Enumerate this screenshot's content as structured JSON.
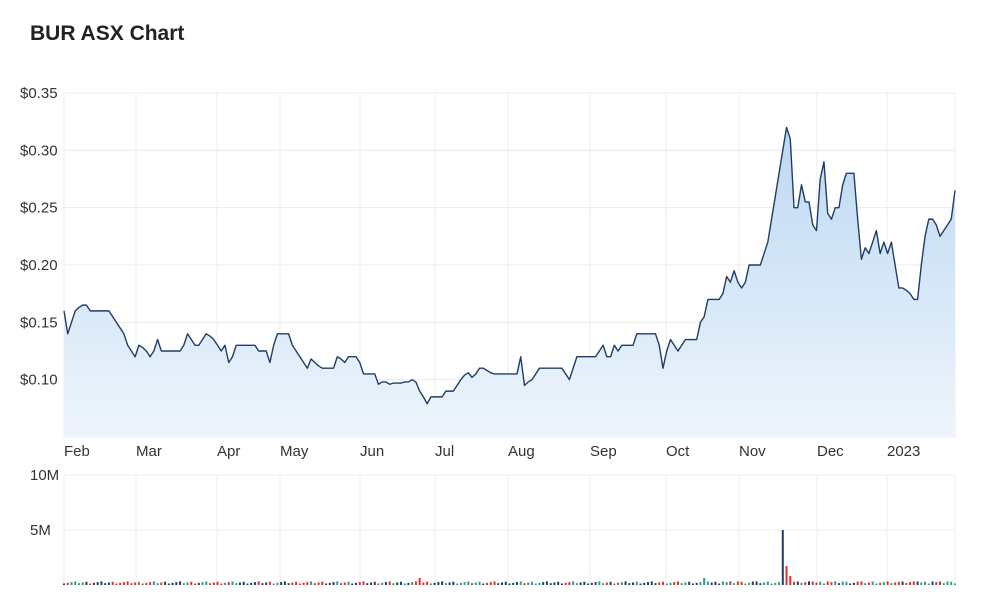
{
  "chart_data": {
    "type": "line",
    "title": "BUR ASX Chart",
    "colors": {
      "line": "#1f3d66",
      "area_top": "#bcd8f2",
      "area_bottom": "#eef5fc",
      "volume_up": "#2a9d8f",
      "volume_down": "#e0342a",
      "volume_neutral": "#1f3d66",
      "grid": "#ececec"
    },
    "grid": true,
    "price": {
      "y_ticks": [
        {
          "value": 0.35,
          "label": "$0.35"
        },
        {
          "value": 0.3,
          "label": "$0.30"
        },
        {
          "value": 0.25,
          "label": "$0.25"
        },
        {
          "value": 0.2,
          "label": "$0.20"
        },
        {
          "value": 0.15,
          "label": "$0.15"
        },
        {
          "value": 0.1,
          "label": "$0.10"
        }
      ],
      "ylim": [
        0.05,
        0.35
      ],
      "x_ticks": [
        "Feb",
        "Mar",
        "Apr",
        "May",
        "Jun",
        "Jul",
        "Aug",
        "Sep",
        "Oct",
        "Nov",
        "Dec",
        "2023"
      ],
      "series": [
        {
          "values": [
            0.16,
            0.14,
            0.15,
            0.16,
            0.163,
            0.165,
            0.165,
            0.16,
            0.16,
            0.16,
            0.16,
            0.16,
            0.16,
            0.155,
            0.15,
            0.145,
            0.14,
            0.13,
            0.125,
            0.12,
            0.13,
            0.128,
            0.125,
            0.12,
            0.125,
            0.135,
            0.125,
            0.125,
            0.125,
            0.125,
            0.125,
            0.125,
            0.13,
            0.14,
            0.135,
            0.13,
            0.13,
            0.135,
            0.14,
            0.138,
            0.135,
            0.13,
            0.125,
            0.13,
            0.115,
            0.12,
            0.13,
            0.13,
            0.13,
            0.13,
            0.13,
            0.13,
            0.125,
            0.125,
            0.125,
            0.115,
            0.13,
            0.14,
            0.14,
            0.14,
            0.14,
            0.13,
            0.125,
            0.12,
            0.115,
            0.11,
            0.118,
            0.115,
            0.112,
            0.11,
            0.11,
            0.11,
            0.11,
            0.12,
            0.118,
            0.115,
            0.12,
            0.12,
            0.12,
            0.115,
            0.105,
            0.105,
            0.105,
            0.105,
            0.096,
            0.098,
            0.098,
            0.096,
            0.097,
            0.097,
            0.097,
            0.098,
            0.098,
            0.1,
            0.098,
            0.09,
            0.085,
            0.079,
            0.085,
            0.085,
            0.085,
            0.085,
            0.09,
            0.09,
            0.09,
            0.095,
            0.1,
            0.104,
            0.106,
            0.102,
            0.105,
            0.11,
            0.11,
            0.108,
            0.106,
            0.105,
            0.105,
            0.105,
            0.105,
            0.105,
            0.105,
            0.105,
            0.12,
            0.095,
            0.098,
            0.1,
            0.105,
            0.11,
            0.11,
            0.11,
            0.11,
            0.11,
            0.11,
            0.11,
            0.105,
            0.1,
            0.11,
            0.12,
            0.12,
            0.12,
            0.12,
            0.12,
            0.12,
            0.125,
            0.13,
            0.12,
            0.12,
            0.13,
            0.125,
            0.13,
            0.13,
            0.13,
            0.13,
            0.14,
            0.14,
            0.14,
            0.14,
            0.14,
            0.14,
            0.13,
            0.11,
            0.125,
            0.135,
            0.13,
            0.125,
            0.13,
            0.135,
            0.135,
            0.135,
            0.135,
            0.15,
            0.155,
            0.17,
            0.17,
            0.17,
            0.17,
            0.175,
            0.19,
            0.185,
            0.195,
            0.185,
            0.18,
            0.185,
            0.2,
            0.2,
            0.2,
            0.2,
            0.21,
            0.22,
            0.24,
            0.26,
            0.28,
            0.3,
            0.32,
            0.31,
            0.25,
            0.25,
            0.27,
            0.255,
            0.255,
            0.235,
            0.23,
            0.275,
            0.29,
            0.245,
            0.24,
            0.25,
            0.25,
            0.27,
            0.28,
            0.28,
            0.28,
            0.24,
            0.205,
            0.215,
            0.21,
            0.22,
            0.23,
            0.21,
            0.22,
            0.21,
            0.22,
            0.2,
            0.18,
            0.18,
            0.178,
            0.175,
            0.17,
            0.17,
            0.2,
            0.225,
            0.24,
            0.24,
            0.235,
            0.225,
            0.23,
            0.235,
            0.24,
            0.265
          ]
        }
      ]
    },
    "volume": {
      "y_ticks": [
        {
          "value": 10000000,
          "label": "10M"
        },
        {
          "value": 5000000,
          "label": "5M"
        }
      ],
      "ylim": [
        0,
        10000000
      ]
    }
  }
}
